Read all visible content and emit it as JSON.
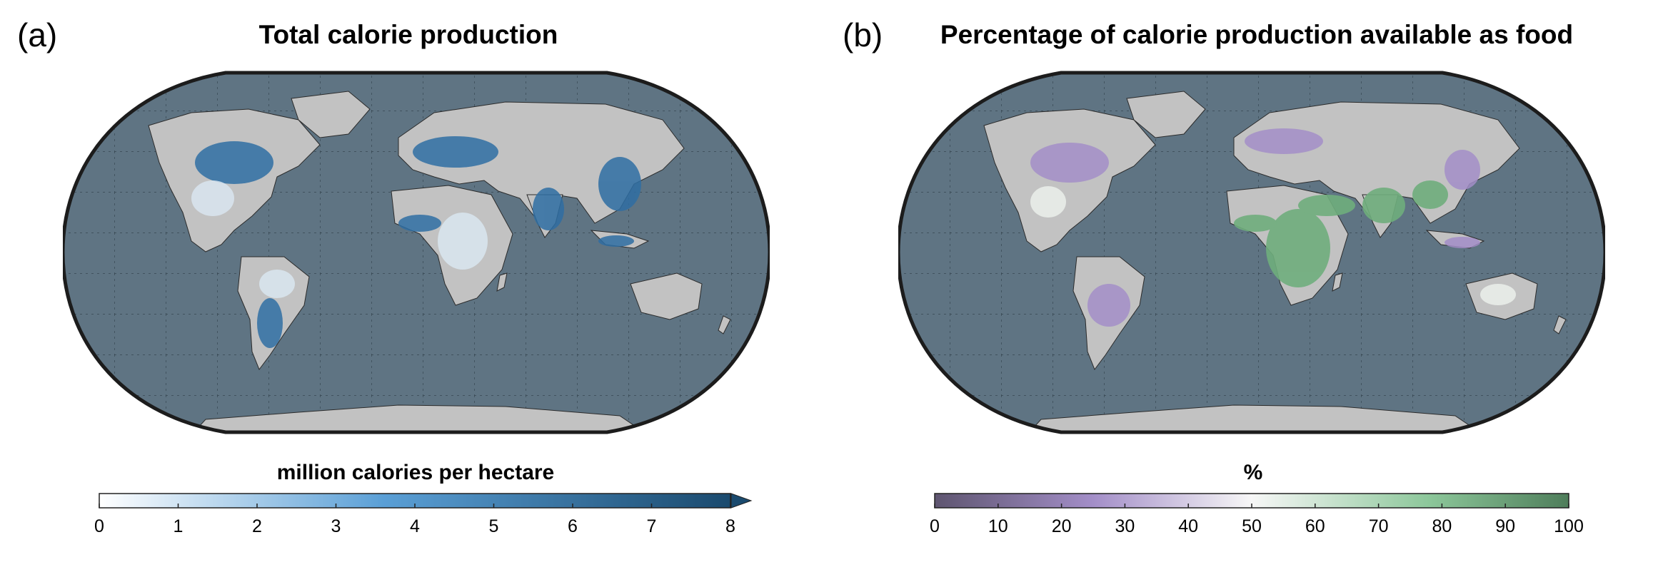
{
  "panels": [
    {
      "letter": "(a)",
      "title": "Total calorie production",
      "colorbar": {
        "label": "million calories per hectare",
        "ticks": [
          "0",
          "1",
          "2",
          "3",
          "4",
          "5",
          "6",
          "7",
          "8"
        ],
        "range": [
          0,
          8
        ],
        "extend_max": true,
        "colors": [
          "#ffffff",
          "#5a9fd6",
          "#1a4a6e"
        ]
      }
    },
    {
      "letter": "(b)",
      "title": "Percentage of calorie production available as food",
      "colorbar": {
        "label": "%",
        "ticks": [
          "0",
          "10",
          "20",
          "30",
          "40",
          "50",
          "60",
          "70",
          "80",
          "90",
          "100"
        ],
        "range": [
          0,
          100
        ],
        "extend_max": false,
        "colors": [
          "#5e5570",
          "#a38ec8",
          "#f7f7f7",
          "#8cc79a",
          "#4e7d5a"
        ]
      }
    }
  ],
  "map_style": {
    "projection": "Robinson",
    "ocean_color": "#5f7483",
    "land_color": "#c2c2c2",
    "graticule": "dotted"
  }
}
